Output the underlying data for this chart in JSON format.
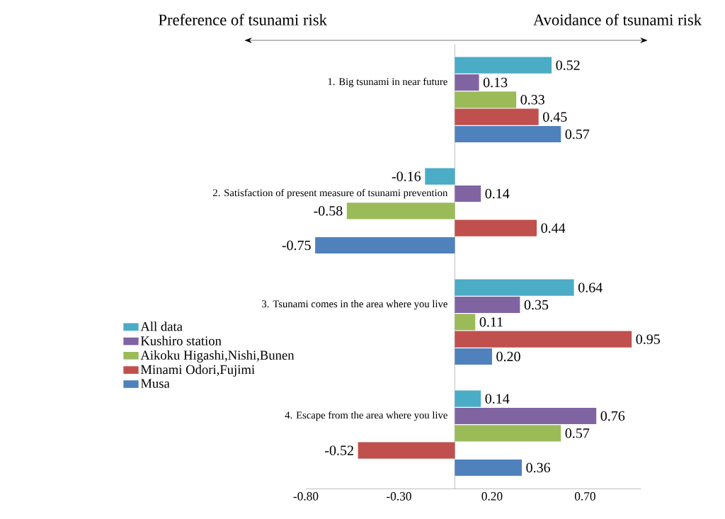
{
  "chart_data": {
    "type": "bar",
    "orientation": "horizontal",
    "categories": [
      "1. Big tsunami in near future",
      "2. Satisfaction of present measure of tsunami prevention",
      "3. Tsunami comes in the area where you live",
      "4. Escape from the area where you live"
    ],
    "series": [
      {
        "name": "All data",
        "color": "#4bacc6",
        "values": [
          0.52,
          -0.16,
          0.64,
          0.14
        ],
        "value_labels": [
          "0.52",
          "-0.16",
          "0.64",
          "0.14"
        ]
      },
      {
        "name": "Kushiro station",
        "color": "#8064a2",
        "values": [
          0.13,
          0.14,
          0.35,
          0.76
        ],
        "value_labels": [
          "0.13",
          "0.14",
          "0.35",
          "0.76"
        ]
      },
      {
        "name": "Aikoku Higashi,Nishi,Bunen",
        "color": "#9bbb59",
        "values": [
          0.33,
          -0.58,
          0.11,
          0.57
        ],
        "value_labels": [
          "0.33",
          "-0.58",
          "0.11",
          "0.57"
        ]
      },
      {
        "name": "Minami Odori,Fujimi",
        "color": "#c0504d",
        "values": [
          0.45,
          0.44,
          0.95,
          -0.52
        ],
        "value_labels": [
          "0.45",
          "0.44",
          "0.95",
          "-0.52"
        ]
      },
      {
        "name": "Musa",
        "color": "#4f81bd",
        "values": [
          0.57,
          -0.75,
          0.2,
          0.36
        ],
        "value_labels": [
          "0.57",
          "-0.75",
          "0.20",
          "0.36"
        ]
      }
    ],
    "xlim": [
      -0.8,
      1.0
    ],
    "xticks": [
      {
        "value": -0.8,
        "label": "-0.80"
      },
      {
        "value": -0.3,
        "label": "-0.30"
      },
      {
        "value": 0.2,
        "label": "0.20"
      },
      {
        "value": 0.7,
        "label": "0.70"
      }
    ],
    "legend": "left",
    "annotations": [
      "Preference of tsunami risk",
      "Avoidance of tsunami risk"
    ]
  }
}
